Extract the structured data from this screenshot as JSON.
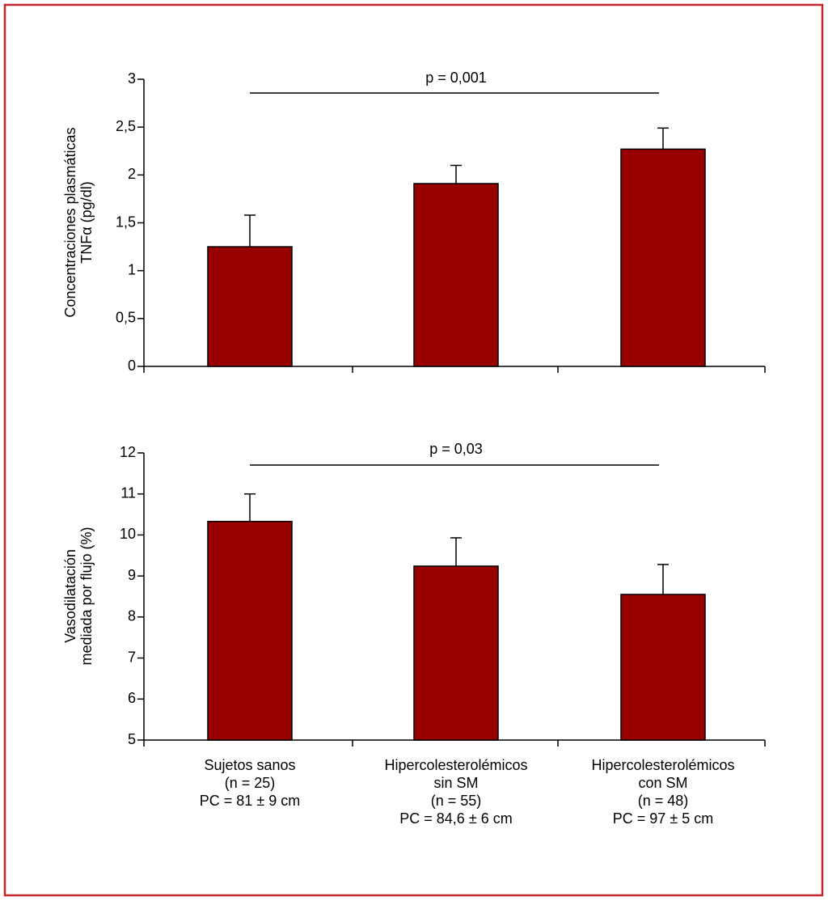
{
  "chart_data": [
    {
      "type": "bar",
      "y_label": [
        "Concentraciones plasmáticas",
        "TNFα (pg/dl)"
      ],
      "values": [
        1.25,
        1.91,
        2.27
      ],
      "errors": [
        0.33,
        0.19,
        0.22
      ],
      "color": "#990000",
      "ylim": [
        0,
        3
      ],
      "yticks": [
        0,
        {
          "value": 0.5,
          "label": "0,5"
        },
        1,
        {
          "value": 1.5,
          "label": "1,5"
        },
        2,
        {
          "value": 2.5,
          "label": "2,5"
        },
        3
      ],
      "annotation": "p = 0,001"
    },
    {
      "type": "bar",
      "y_label": [
        "Vasodilatación",
        "mediada por flujo (%)"
      ],
      "categories": [
        [
          "Sujetos sanos",
          "(n = 25)",
          "PC = 81 ± 9 cm"
        ],
        [
          "Hipercolesterolémicos",
          "sin SM",
          "(n = 55)",
          "PC = 84,6 ± 6 cm"
        ],
        [
          "Hipercolesterolémicos",
          "con SM",
          "(n = 48)",
          "PC = 97 ± 5 cm"
        ]
      ],
      "values": [
        10.33,
        9.24,
        8.55
      ],
      "errors": [
        0.67,
        0.69,
        0.73
      ],
      "color": "#990000",
      "ylim": [
        5,
        12
      ],
      "yticks": [
        5,
        6,
        7,
        8,
        9,
        10,
        11,
        12
      ],
      "annotation": "p = 0,03"
    }
  ]
}
